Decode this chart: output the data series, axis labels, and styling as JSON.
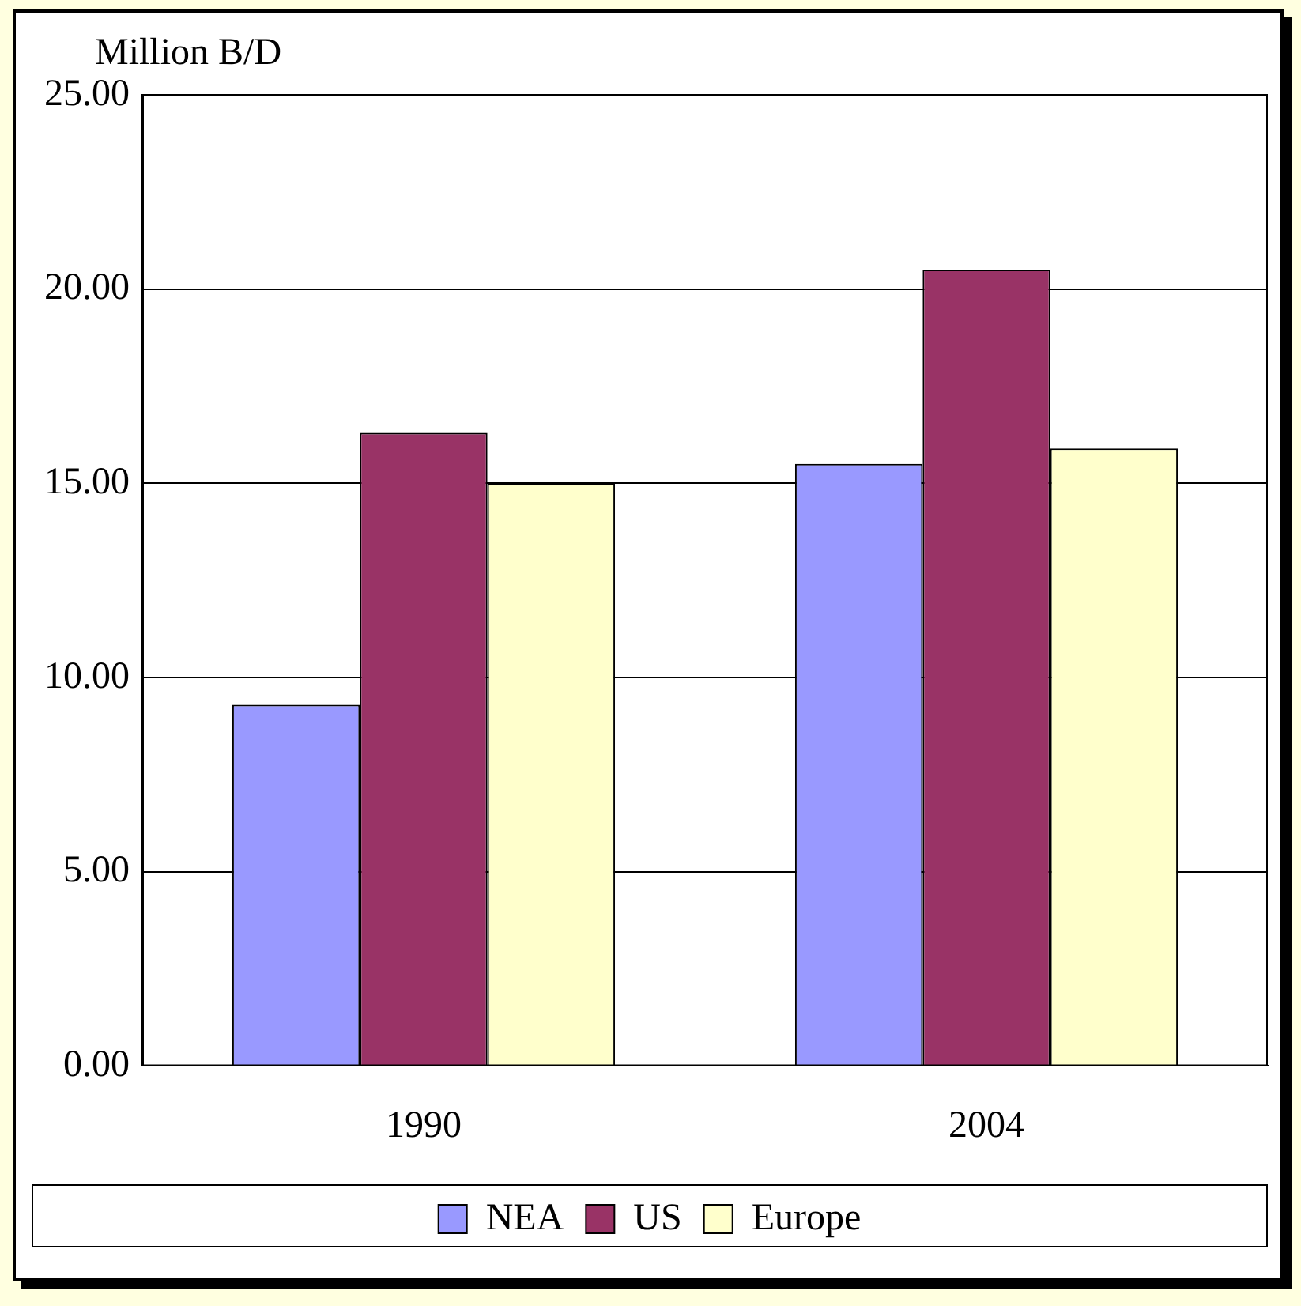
{
  "chart_data": {
    "type": "bar",
    "ylabel": "Million B/D",
    "categories": [
      "1990",
      "2004"
    ],
    "series": [
      {
        "name": "NEA",
        "color": "#9999ff",
        "values": [
          9.3,
          15.5
        ]
      },
      {
        "name": "US",
        "color": "#993366",
        "values": [
          16.3,
          20.5
        ]
      },
      {
        "name": "Europe",
        "color": "#ffffcc",
        "values": [
          15.0,
          15.9
        ]
      }
    ],
    "ylim": [
      0,
      25
    ],
    "yticks": [
      {
        "value": 0,
        "label": "0.00"
      },
      {
        "value": 5,
        "label": "5.00"
      },
      {
        "value": 10,
        "label": "10.00"
      },
      {
        "value": 15,
        "label": "15.00"
      },
      {
        "value": 20,
        "label": "20.00"
      },
      {
        "value": 25,
        "label": "25.00"
      }
    ],
    "grid": "y",
    "legend": "bottom"
  }
}
